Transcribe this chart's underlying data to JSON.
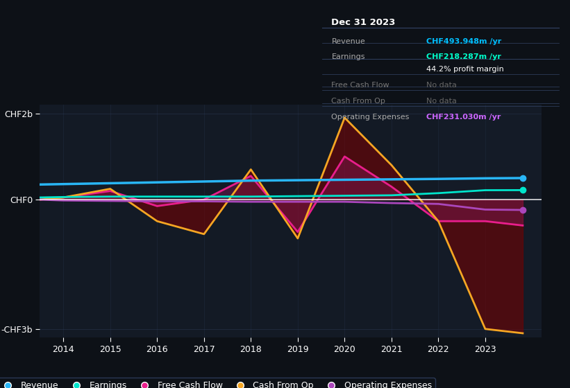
{
  "bg_color": "#0d1117",
  "plot_bg_color": "#131a25",
  "title_box": {
    "date": "Dec 31 2023",
    "rows": [
      {
        "label": "Revenue",
        "value": "CHF493.948m /yr",
        "value_color": "#00bfff"
      },
      {
        "label": "Earnings",
        "value": "CHF218.287m /yr",
        "value_color": "#00ffcc"
      },
      {
        "label": "",
        "value": "44.2% profit margin",
        "value_color": "#ffffff"
      },
      {
        "label": "Free Cash Flow",
        "value": "No data",
        "value_color": "#666666"
      },
      {
        "label": "Cash From Op",
        "value": "No data",
        "value_color": "#666666"
      },
      {
        "label": "Operating Expenses",
        "value": "CHF231.030m /yr",
        "value_color": "#cc66ff"
      }
    ]
  },
  "years": [
    2013.5,
    2014,
    2015,
    2016,
    2017,
    2018,
    2019,
    2020,
    2021,
    2022,
    2023,
    2023.8
  ],
  "revenue": [
    0.35,
    0.36,
    0.38,
    0.4,
    0.42,
    0.44,
    0.45,
    0.46,
    0.47,
    0.48,
    0.494,
    0.5
  ],
  "earnings": [
    0.05,
    0.06,
    0.07,
    0.07,
    0.07,
    0.07,
    0.08,
    0.09,
    0.1,
    0.15,
    0.218,
    0.22
  ],
  "free_cash_flow": [
    0.0,
    0.05,
    0.2,
    -0.15,
    0.0,
    0.55,
    -0.75,
    1.0,
    0.3,
    -0.5,
    -0.5,
    -0.6
  ],
  "cash_from_op": [
    0.0,
    0.05,
    0.25,
    -0.5,
    -0.8,
    0.7,
    -0.9,
    1.9,
    0.8,
    -0.5,
    -3.0,
    -3.1
  ],
  "operating_expenses": [
    0.0,
    -0.02,
    -0.03,
    -0.04,
    -0.04,
    -0.05,
    -0.05,
    -0.05,
    -0.08,
    -0.1,
    -0.231,
    -0.24
  ],
  "colors": {
    "revenue": "#29b6f6",
    "earnings": "#00e5cc",
    "free_cash_flow": "#e91e8c",
    "cash_from_op": "#f5a623",
    "operating_expenses": "#ab47bc"
  },
  "ylim": [
    -3.2,
    2.2
  ],
  "yticks": [
    -3,
    0,
    2
  ],
  "ytick_labels": [
    "-CHF3b",
    "CHF0",
    "CHF2b"
  ],
  "xlim": [
    2013.5,
    2024.2
  ],
  "xticks": [
    2014,
    2015,
    2016,
    2017,
    2018,
    2019,
    2020,
    2021,
    2022,
    2023
  ]
}
